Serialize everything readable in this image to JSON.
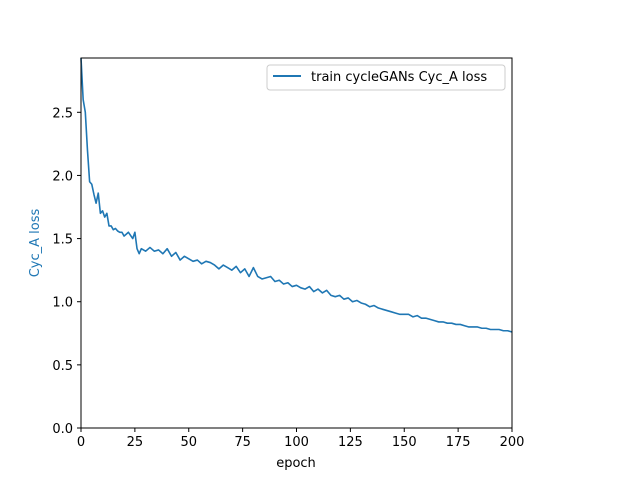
{
  "colors": {
    "series": "#1f77b4",
    "axis": "#000000",
    "ylabel": "#1f77b4",
    "legend_border": "#cccccc"
  },
  "chart_data": {
    "type": "line",
    "xlabel": "epoch",
    "ylabel": "Cyc_A loss",
    "xlim": [
      0,
      200
    ],
    "ylim": [
      0,
      2.93
    ],
    "xticks": [
      0,
      25,
      50,
      75,
      100,
      125,
      150,
      175,
      200
    ],
    "yticks": [
      0.0,
      0.5,
      1.0,
      1.5,
      2.0,
      2.5
    ],
    "xtick_labels": [
      "0",
      "25",
      "50",
      "75",
      "100",
      "125",
      "150",
      "175",
      "200"
    ],
    "ytick_labels": [
      "0.0",
      "0.5",
      "1.0",
      "1.5",
      "2.0",
      "2.5"
    ],
    "grid": false,
    "legend_position": "top-right",
    "series": [
      {
        "name": "train cycleGANs Cyc_A loss",
        "x": [
          0,
          1,
          2,
          3,
          4,
          5,
          6,
          7,
          8,
          9,
          10,
          11,
          12,
          13,
          14,
          15,
          16,
          17,
          18,
          19,
          20,
          22,
          24,
          25,
          26,
          27,
          28,
          30,
          32,
          34,
          36,
          38,
          40,
          42,
          44,
          46,
          48,
          50,
          52,
          54,
          56,
          58,
          60,
          62,
          64,
          66,
          68,
          70,
          72,
          74,
          76,
          78,
          80,
          82,
          84,
          86,
          88,
          90,
          92,
          94,
          96,
          98,
          100,
          102,
          104,
          106,
          108,
          110,
          112,
          114,
          116,
          118,
          120,
          122,
          124,
          126,
          128,
          130,
          132,
          134,
          136,
          138,
          140,
          142,
          144,
          146,
          148,
          150,
          152,
          154,
          156,
          158,
          160,
          162,
          164,
          166,
          168,
          170,
          172,
          174,
          176,
          178,
          180,
          182,
          184,
          186,
          188,
          190,
          192,
          194,
          196,
          198,
          200
        ],
        "y": [
          2.93,
          2.6,
          2.5,
          2.2,
          1.95,
          1.93,
          1.85,
          1.78,
          1.86,
          1.7,
          1.72,
          1.67,
          1.7,
          1.6,
          1.6,
          1.57,
          1.58,
          1.56,
          1.55,
          1.55,
          1.52,
          1.55,
          1.5,
          1.55,
          1.42,
          1.38,
          1.42,
          1.4,
          1.43,
          1.4,
          1.41,
          1.38,
          1.42,
          1.36,
          1.39,
          1.33,
          1.36,
          1.34,
          1.32,
          1.33,
          1.3,
          1.32,
          1.31,
          1.29,
          1.26,
          1.29,
          1.27,
          1.25,
          1.28,
          1.23,
          1.26,
          1.2,
          1.27,
          1.2,
          1.18,
          1.19,
          1.2,
          1.16,
          1.17,
          1.14,
          1.15,
          1.12,
          1.13,
          1.11,
          1.1,
          1.12,
          1.08,
          1.1,
          1.07,
          1.09,
          1.05,
          1.04,
          1.05,
          1.02,
          1.03,
          1.0,
          1.01,
          0.99,
          0.98,
          0.96,
          0.97,
          0.95,
          0.94,
          0.93,
          0.92,
          0.91,
          0.9,
          0.9,
          0.9,
          0.88,
          0.89,
          0.87,
          0.87,
          0.86,
          0.85,
          0.84,
          0.84,
          0.83,
          0.83,
          0.82,
          0.82,
          0.81,
          0.8,
          0.8,
          0.8,
          0.79,
          0.79,
          0.78,
          0.78,
          0.78,
          0.77,
          0.77,
          0.76
        ]
      }
    ]
  }
}
